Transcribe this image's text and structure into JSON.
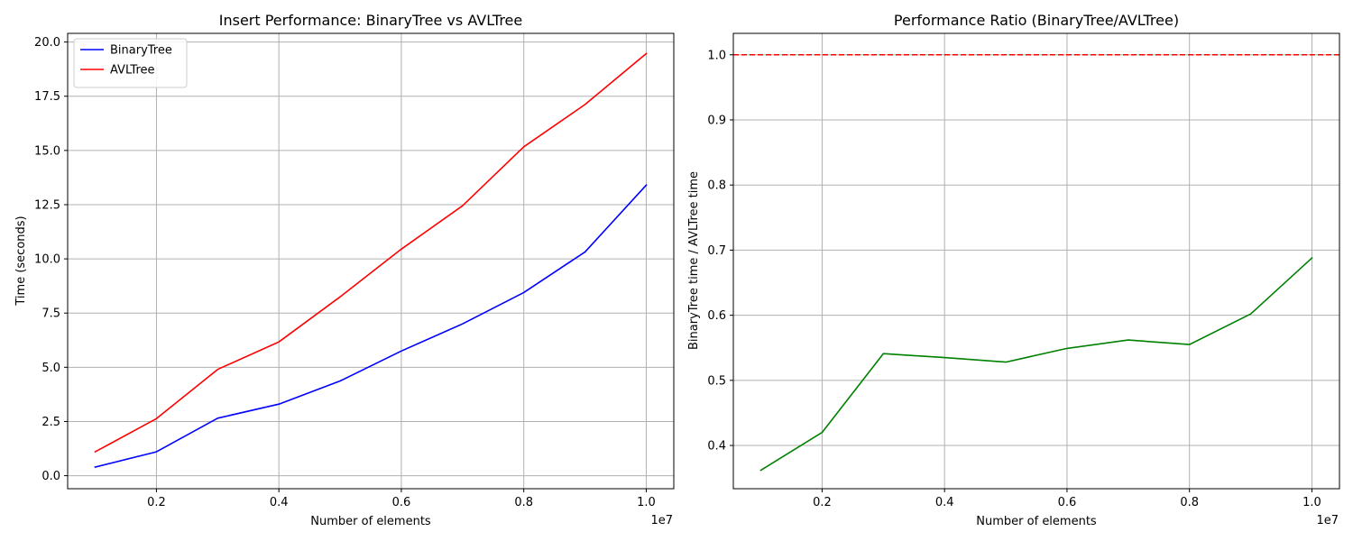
{
  "colors": {
    "BinaryTree": "#0000ff",
    "AVLTree": "#ff0000",
    "ratio": "#008000",
    "reference": "#ff0000",
    "grid": "#b0b0b0"
  },
  "chart_data": [
    {
      "type": "line",
      "title": "Insert Performance: BinaryTree vs AVLTree",
      "xlabel": "Number of elements",
      "ylabel": "Time (seconds)",
      "x_offset_label": "1e7",
      "x": [
        1000000,
        2000000,
        3000000,
        4000000,
        5000000,
        6000000,
        7000000,
        8000000,
        9000000,
        10000000
      ],
      "xlim": [
        550000,
        10450000
      ],
      "ylim": [
        -0.6,
        20.4
      ],
      "x_ticks": [
        2000000,
        4000000,
        6000000,
        8000000,
        10000000
      ],
      "x_tick_labels": [
        "0.2",
        "0.4",
        "0.6",
        "0.8",
        "1.0"
      ],
      "y_ticks": [
        0.0,
        2.5,
        5.0,
        7.5,
        10.0,
        12.5,
        15.0,
        17.5,
        20.0
      ],
      "y_tick_labels": [
        "0.0",
        "2.5",
        "5.0",
        "7.5",
        "10.0",
        "12.5",
        "15.0",
        "17.5",
        "20.0"
      ],
      "grid": true,
      "legend": "top-left",
      "series": [
        {
          "name": "BinaryTree",
          "color": "#0000ff",
          "values": [
            0.4,
            1.1,
            2.65,
            3.3,
            4.37,
            5.75,
            7.0,
            8.45,
            10.32,
            13.4
          ]
        },
        {
          "name": "AVLTree",
          "color": "#ff0000",
          "values": [
            1.1,
            2.63,
            4.9,
            6.17,
            8.25,
            10.45,
            12.45,
            15.17,
            17.12,
            19.47
          ]
        }
      ]
    },
    {
      "type": "line",
      "title": "Performance Ratio (BinaryTree/AVLTree)",
      "xlabel": "Number of elements",
      "ylabel": "BinaryTree time / AVLTree time",
      "x_offset_label": "1e7",
      "x": [
        1000000,
        2000000,
        3000000,
        4000000,
        5000000,
        6000000,
        7000000,
        8000000,
        9000000,
        10000000
      ],
      "xlim": [
        550000,
        10450000
      ],
      "ylim": [
        0.3336,
        1.0329
      ],
      "x_ticks": [
        2000000,
        4000000,
        6000000,
        8000000,
        10000000
      ],
      "x_tick_labels": [
        "0.2",
        "0.4",
        "0.6",
        "0.8",
        "1.0"
      ],
      "y_ticks": [
        0.4,
        0.5,
        0.6,
        0.7,
        0.8,
        0.9,
        1.0
      ],
      "y_tick_labels": [
        "0.4",
        "0.5",
        "0.6",
        "0.7",
        "0.8",
        "0.9",
        "1.0"
      ],
      "grid": true,
      "reference_line": {
        "y": 1.0,
        "color": "#ff0000",
        "style": "dashed"
      },
      "series": [
        {
          "color": "#008000",
          "values": [
            0.362,
            0.42,
            0.541,
            0.535,
            0.528,
            0.549,
            0.562,
            0.555,
            0.602,
            0.688
          ]
        }
      ]
    }
  ]
}
